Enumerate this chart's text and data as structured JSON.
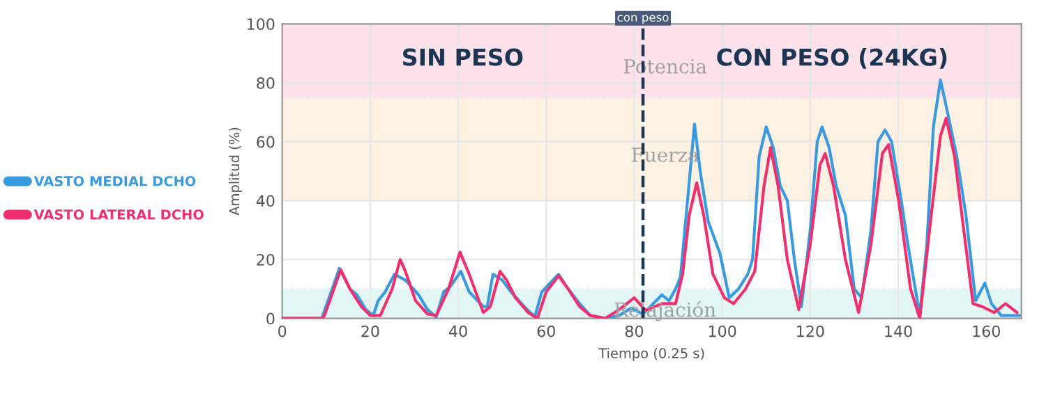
{
  "chart_data": {
    "type": "line",
    "xlabel": "Tiempo (0.25 s)",
    "ylabel": "Amplitud (%)",
    "xlim": [
      0,
      168
    ],
    "ylim": [
      0,
      100
    ],
    "xticks": [
      0,
      20,
      40,
      60,
      80,
      100,
      120,
      140,
      160
    ],
    "yticks": [
      0,
      20,
      40,
      60,
      80,
      100
    ],
    "grid": true,
    "legend": "left",
    "marker": "none",
    "line_style": "solid",
    "series": [
      {
        "name": "VASTO MEDIAL DCHO",
        "color": "#3a9ae0",
        "x": [
          0,
          9,
          13,
          15.4,
          17,
          19,
          20.7,
          21.8,
          23.4,
          25.5,
          28,
          31,
          33,
          35,
          36.7,
          38.3,
          40.6,
          42.5,
          45.7,
          46.6,
          47.9,
          50,
          52,
          55,
          57.4,
          59,
          62.8,
          65,
          67.6,
          70,
          73.4,
          76.6,
          79.3,
          82,
          83,
          86.3,
          87.9,
          89.4,
          90.5,
          92,
          93.7,
          95,
          96.8,
          99.5,
          101.6,
          103.7,
          105.8,
          106.9,
          108.4,
          110,
          111.6,
          113.2,
          114.8,
          116.4,
          118,
          120,
          121.6,
          122.7,
          124.3,
          125.9,
          128,
          130,
          131.7,
          133.8,
          135.4,
          137,
          138.5,
          140.7,
          142.2,
          144.9,
          146.5,
          148,
          149.6,
          151.2,
          153.3,
          155.4,
          157.6,
          159.7,
          161.2,
          163.4,
          167.6
        ],
        "values": [
          0,
          0,
          17,
          10,
          8,
          3,
          1,
          6,
          9,
          15,
          13,
          8,
          3,
          0.5,
          9,
          11,
          16,
          9,
          4,
          4,
          15,
          13,
          9,
          4,
          0.5,
          9,
          15,
          10,
          5,
          1,
          0,
          1,
          3.5,
          1.5,
          3,
          8,
          6,
          10,
          14,
          38,
          66,
          50,
          33,
          22,
          7,
          10,
          15,
          20,
          55,
          65,
          58,
          45,
          40,
          20,
          4,
          30,
          60,
          65,
          58,
          45,
          35,
          10,
          7,
          30,
          60,
          64,
          60,
          40,
          25,
          1,
          25,
          65,
          81,
          70,
          55,
          35,
          6,
          12,
          5,
          1,
          1
        ]
      },
      {
        "name": "VASTO LATERAL DCHO",
        "color": "#f0306e",
        "x": [
          0,
          9,
          9.6,
          13.3,
          15.4,
          18,
          20,
          22.3,
          25,
          26.8,
          28,
          30.3,
          33,
          35,
          37.8,
          40.4,
          42.5,
          45.7,
          47.3,
          49.5,
          51,
          53,
          55.9,
          58,
          60,
          62.8,
          65,
          67.6,
          70,
          73.4,
          76.6,
          80,
          82.4,
          83,
          86.3,
          89.4,
          91,
          92.5,
          94.2,
          95.8,
          97.9,
          100.5,
          102.6,
          105.3,
          107.4,
          109.5,
          111,
          112.7,
          114.8,
          117.4,
          120,
          122.2,
          123.4,
          125.3,
          128,
          131,
          133.8,
          136.4,
          137.8,
          140.1,
          142.8,
          144.9,
          147.5,
          149.6,
          150.9,
          152.8,
          154.9,
          157,
          159.1,
          161.8,
          164.4,
          167
        ],
        "values": [
          0,
          0,
          1,
          16.5,
          10,
          4,
          1,
          1,
          10,
          20,
          16,
          6,
          1.5,
          1,
          10,
          22.5,
          15,
          2,
          4,
          16,
          13,
          7,
          2,
          0,
          9,
          14.5,
          10,
          4,
          1,
          0,
          3,
          7,
          3,
          3,
          5,
          5,
          15,
          35,
          46,
          35,
          15,
          7,
          5,
          10,
          16,
          45,
          58,
          45,
          20,
          3,
          25,
          52,
          56,
          45,
          20,
          2,
          25,
          56,
          59,
          40,
          10,
          0,
          35,
          62,
          68,
          55,
          30,
          5,
          4,
          2,
          5,
          2
        ]
      }
    ],
    "bands": [
      {
        "axis": "y",
        "from": 0,
        "to": 10,
        "label": "Relajación",
        "color": "#e3f6f6"
      },
      {
        "axis": "y",
        "from": 40,
        "to": 75,
        "label": "Fuerza",
        "color": "#fdf1e4"
      },
      {
        "axis": "y",
        "from": 75,
        "to": 100,
        "label": "Potencia",
        "color": "#fde1eb"
      }
    ],
    "ref_lines": [
      {
        "axis": "x",
        "value": 82,
        "label": "con peso",
        "color": "#1f3550",
        "line_style": "dashed"
      }
    ],
    "annotations": [
      "SIN PESO",
      "CON PESO (24KG)"
    ]
  }
}
